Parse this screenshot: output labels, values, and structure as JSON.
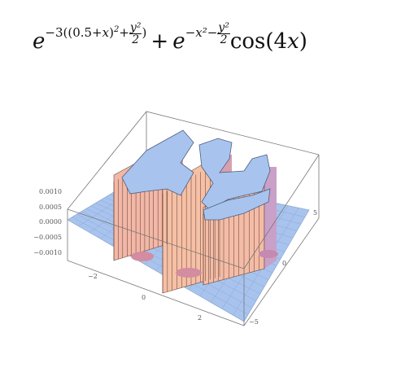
{
  "formula": {
    "text": "e^{-3((0.5+x)^2+y^2/2)} + e^{-x^2-y^2/2} cos(4x)",
    "e1": "e",
    "exp1_a": "−3((0.5+",
    "exp1_x": "x",
    "exp1_b": ")",
    "exp1_sq": "2",
    "exp1_plus": "+",
    "exp1_num": "y²",
    "exp1_den": "2",
    "exp1_close": ")",
    "plus": "+",
    "e2": "e",
    "exp2_a": "−x²−",
    "exp2_num": "y²",
    "exp2_den": "2",
    "cos": "cos(4",
    "cos_x": "x",
    "cos_close": ")"
  },
  "chart_data": {
    "type": "surface",
    "title": "",
    "z_ticks": [
      "0.0010",
      "0.0005",
      "0.0000",
      "−0.0005",
      "−0.0010"
    ],
    "x_ticks": [
      "−2",
      "0",
      "2"
    ],
    "y_ticks": [
      "5",
      "0",
      "−5"
    ],
    "z_range": [
      -0.001,
      0.001
    ],
    "x_range": [
      -3,
      3
    ],
    "y_range": [
      -5,
      5
    ],
    "surface_color": "#a8c4ee",
    "wall_color": "#f2b7a6",
    "mesh": true
  }
}
